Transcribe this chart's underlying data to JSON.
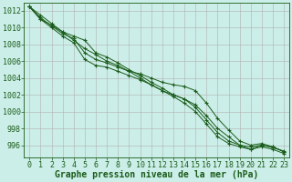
{
  "background_color": "#cceee8",
  "grid_color": "#b0b0b0",
  "line_color": "#1a5c1a",
  "xlabel": "Graphe pression niveau de la mer (hPa)",
  "xlabel_fontsize": 7,
  "tick_fontsize": 6,
  "xlim": [
    -0.5,
    23.5
  ],
  "ylim": [
    994.5,
    1013.0
  ],
  "yticks": [
    996,
    998,
    1000,
    1002,
    1004,
    1006,
    1008,
    1010,
    1012
  ],
  "xticks": [
    0,
    1,
    2,
    3,
    4,
    5,
    6,
    7,
    8,
    9,
    10,
    11,
    12,
    13,
    14,
    15,
    16,
    17,
    18,
    19,
    20,
    21,
    22,
    23
  ],
  "series": [
    [
      1012.5,
      1011.2,
      1010.2,
      1009.3,
      1008.7,
      1007.0,
      1006.2,
      1005.8,
      1005.3,
      1004.8,
      1004.5,
      1004.0,
      1003.5,
      1003.2,
      1003.0,
      1002.5,
      1001.0,
      999.2,
      997.8,
      996.5,
      996.0,
      996.2,
      995.8,
      995.2
    ],
    [
      1012.5,
      1011.5,
      1010.5,
      1009.5,
      1009.0,
      1008.5,
      1007.0,
      1006.5,
      1005.8,
      1005.0,
      1004.3,
      1003.5,
      1002.8,
      1002.0,
      1001.5,
      1000.5,
      999.0,
      997.5,
      996.5,
      996.0,
      995.8,
      996.0,
      995.7,
      995.3
    ],
    [
      1012.5,
      1011.0,
      1010.0,
      1009.0,
      1008.2,
      1006.2,
      1005.5,
      1005.3,
      1004.8,
      1004.3,
      1003.8,
      1003.2,
      1002.5,
      1002.0,
      1001.5,
      1000.8,
      999.5,
      998.0,
      997.0,
      996.0,
      995.5,
      995.8,
      995.5,
      995.0
    ],
    [
      1012.5,
      1011.0,
      1010.3,
      1009.5,
      1008.5,
      1007.5,
      1006.8,
      1006.0,
      1005.5,
      1004.8,
      1004.0,
      1003.2,
      1002.5,
      1001.8,
      1001.0,
      1000.0,
      998.5,
      997.0,
      996.2,
      995.8,
      995.5,
      996.0,
      995.8,
      995.2
    ]
  ]
}
